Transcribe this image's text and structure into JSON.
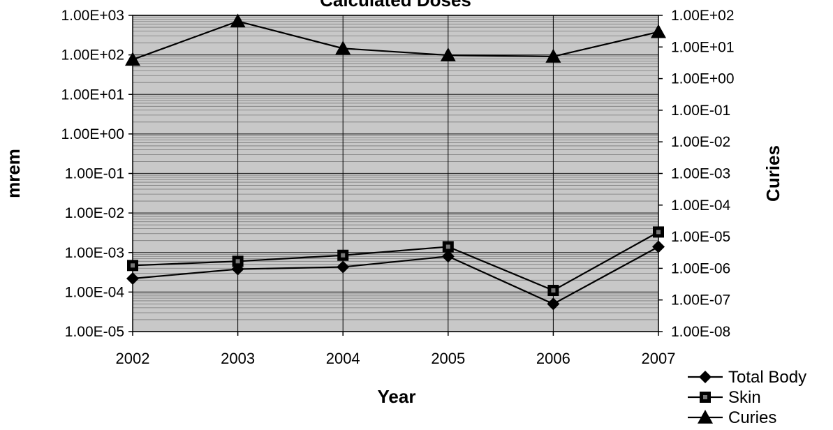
{
  "chart_data": {
    "type": "line",
    "title": "Calculated Doses",
    "xlabel": "Year",
    "ylabel_left": "mrem",
    "ylabel_right": "Curies",
    "categories": [
      "2002",
      "2003",
      "2004",
      "2005",
      "2006",
      "2007"
    ],
    "y_left": {
      "scale": "log",
      "lim": [
        1e-05,
        1000.0
      ],
      "tick_labels": [
        "1.00E+03",
        "1.00E+02",
        "1.00E+01",
        "1.00E+00",
        "1.00E-01",
        "1.00E-02",
        "1.00E-03",
        "1.00E-04",
        "1.00E-05"
      ]
    },
    "y_right": {
      "scale": "log",
      "lim": [
        1e-08,
        100.0
      ],
      "tick_labels": [
        "1.00E+02",
        "1.00E+01",
        "1.00E+00",
        "1.00E-01",
        "1.00E-02",
        "1.00E-03",
        "1.00E-04",
        "1.00E-05",
        "1.00E-06",
        "1.00E-07",
        "1.00E-08"
      ]
    },
    "series": [
      {
        "name": "Total Body",
        "axis": "left",
        "marker": "diamond",
        "values": [
          0.00022,
          0.00038,
          0.00043,
          0.0008,
          5e-05,
          0.0014
        ]
      },
      {
        "name": "Skin",
        "axis": "left",
        "marker": "square",
        "values": [
          0.00047,
          0.0006,
          0.00085,
          0.0014,
          0.00011,
          0.0033
        ]
      },
      {
        "name": "Curies",
        "axis": "right",
        "marker": "triangle",
        "values": [
          4.0,
          65.0,
          9.0,
          5.5,
          5.0,
          30.0
        ]
      }
    ],
    "grid": "on",
    "legend": "bottom-right",
    "colors": {
      "line": "#000000",
      "plot_background": "#c8c8c8",
      "gridline": "#7a7a7a"
    }
  }
}
